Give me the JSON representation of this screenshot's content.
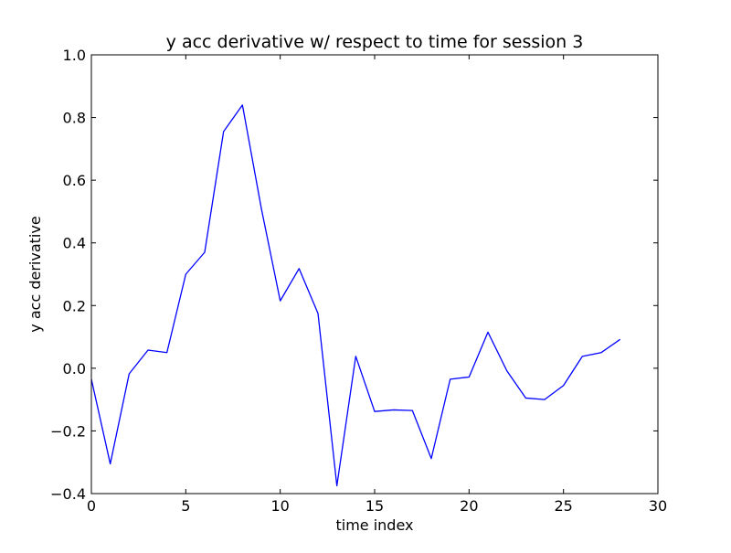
{
  "chart_data": {
    "type": "line",
    "title": "y acc derivative w/ respect to time for session 3",
    "xlabel": "time index",
    "ylabel": "y acc derivative",
    "xlim": [
      0,
      30
    ],
    "ylim": [
      -0.4,
      1.0
    ],
    "xticks": [
      "0",
      "5",
      "10",
      "15",
      "20",
      "25",
      "30"
    ],
    "xtick_values": [
      0,
      5,
      10,
      15,
      20,
      25,
      30
    ],
    "yticks": [
      "−0.4",
      "−0.2",
      "0.0",
      "0.2",
      "0.4",
      "0.6",
      "0.8",
      "1.0"
    ],
    "ytick_values": [
      -0.4,
      -0.2,
      0.0,
      0.2,
      0.4,
      0.6,
      0.8,
      1.0
    ],
    "grid": false,
    "series": [
      {
        "color": "#0000ff",
        "x": [
          0,
          1,
          2,
          3,
          4,
          5,
          6,
          7,
          8,
          9,
          10,
          11,
          12,
          13,
          14,
          15,
          16,
          17,
          18,
          19,
          20,
          21,
          22,
          23,
          24,
          25,
          26,
          27,
          28
        ],
        "y": [
          -0.035,
          -0.305,
          -0.018,
          0.058,
          0.05,
          0.3,
          0.37,
          0.755,
          0.84,
          0.51,
          0.215,
          0.318,
          0.175,
          -0.375,
          0.038,
          -0.138,
          -0.133,
          -0.135,
          -0.288,
          -0.035,
          -0.028,
          0.115,
          -0.008,
          -0.095,
          -0.1,
          -0.055,
          0.038,
          0.05,
          0.092
        ]
      }
    ]
  }
}
